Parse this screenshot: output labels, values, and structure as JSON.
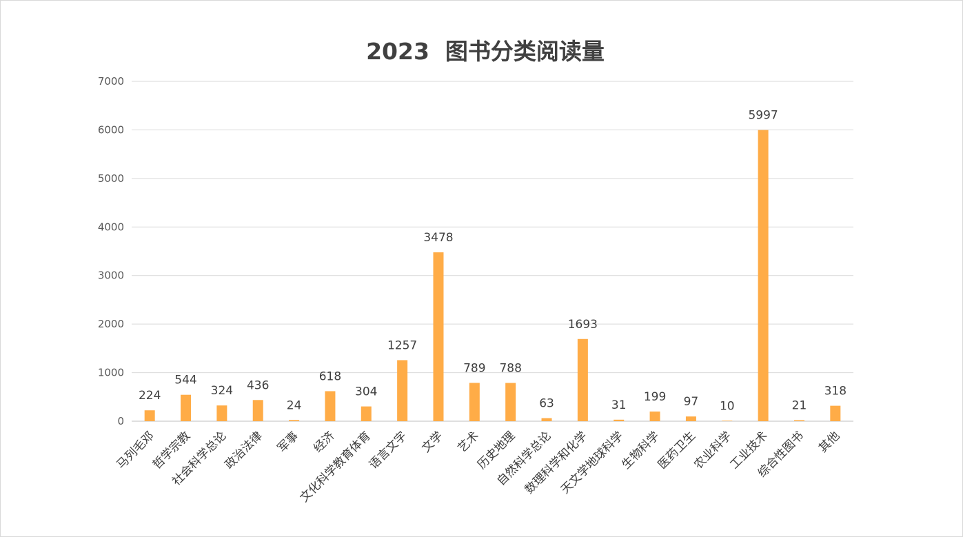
{
  "chart_data": {
    "type": "bar",
    "title": "2023  图书分类阅读量",
    "xlabel": "",
    "ylabel": "",
    "ylim": [
      0,
      7000
    ],
    "yticks": [
      0,
      1000,
      2000,
      3000,
      4000,
      5000,
      6000,
      7000
    ],
    "grid": true,
    "legend": "none",
    "bar_color": "#ffac47",
    "categories": [
      "马列毛邓",
      "哲学宗教",
      "社会科学总论",
      "政治法律",
      "军事",
      "经济",
      "文化科学教育体育",
      "语言文字",
      "文学",
      "艺术",
      "历史地理",
      "自然科学总论",
      "数理科学和化学",
      "天文学地球科学",
      "生物科学",
      "医药卫生",
      "农业科学",
      "工业技术",
      "综合性图书",
      "其他"
    ],
    "values": [
      224,
      544,
      324,
      436,
      24,
      618,
      304,
      1257,
      3478,
      789,
      788,
      63,
      1693,
      31,
      199,
      97,
      10,
      5997,
      21,
      318
    ]
  }
}
